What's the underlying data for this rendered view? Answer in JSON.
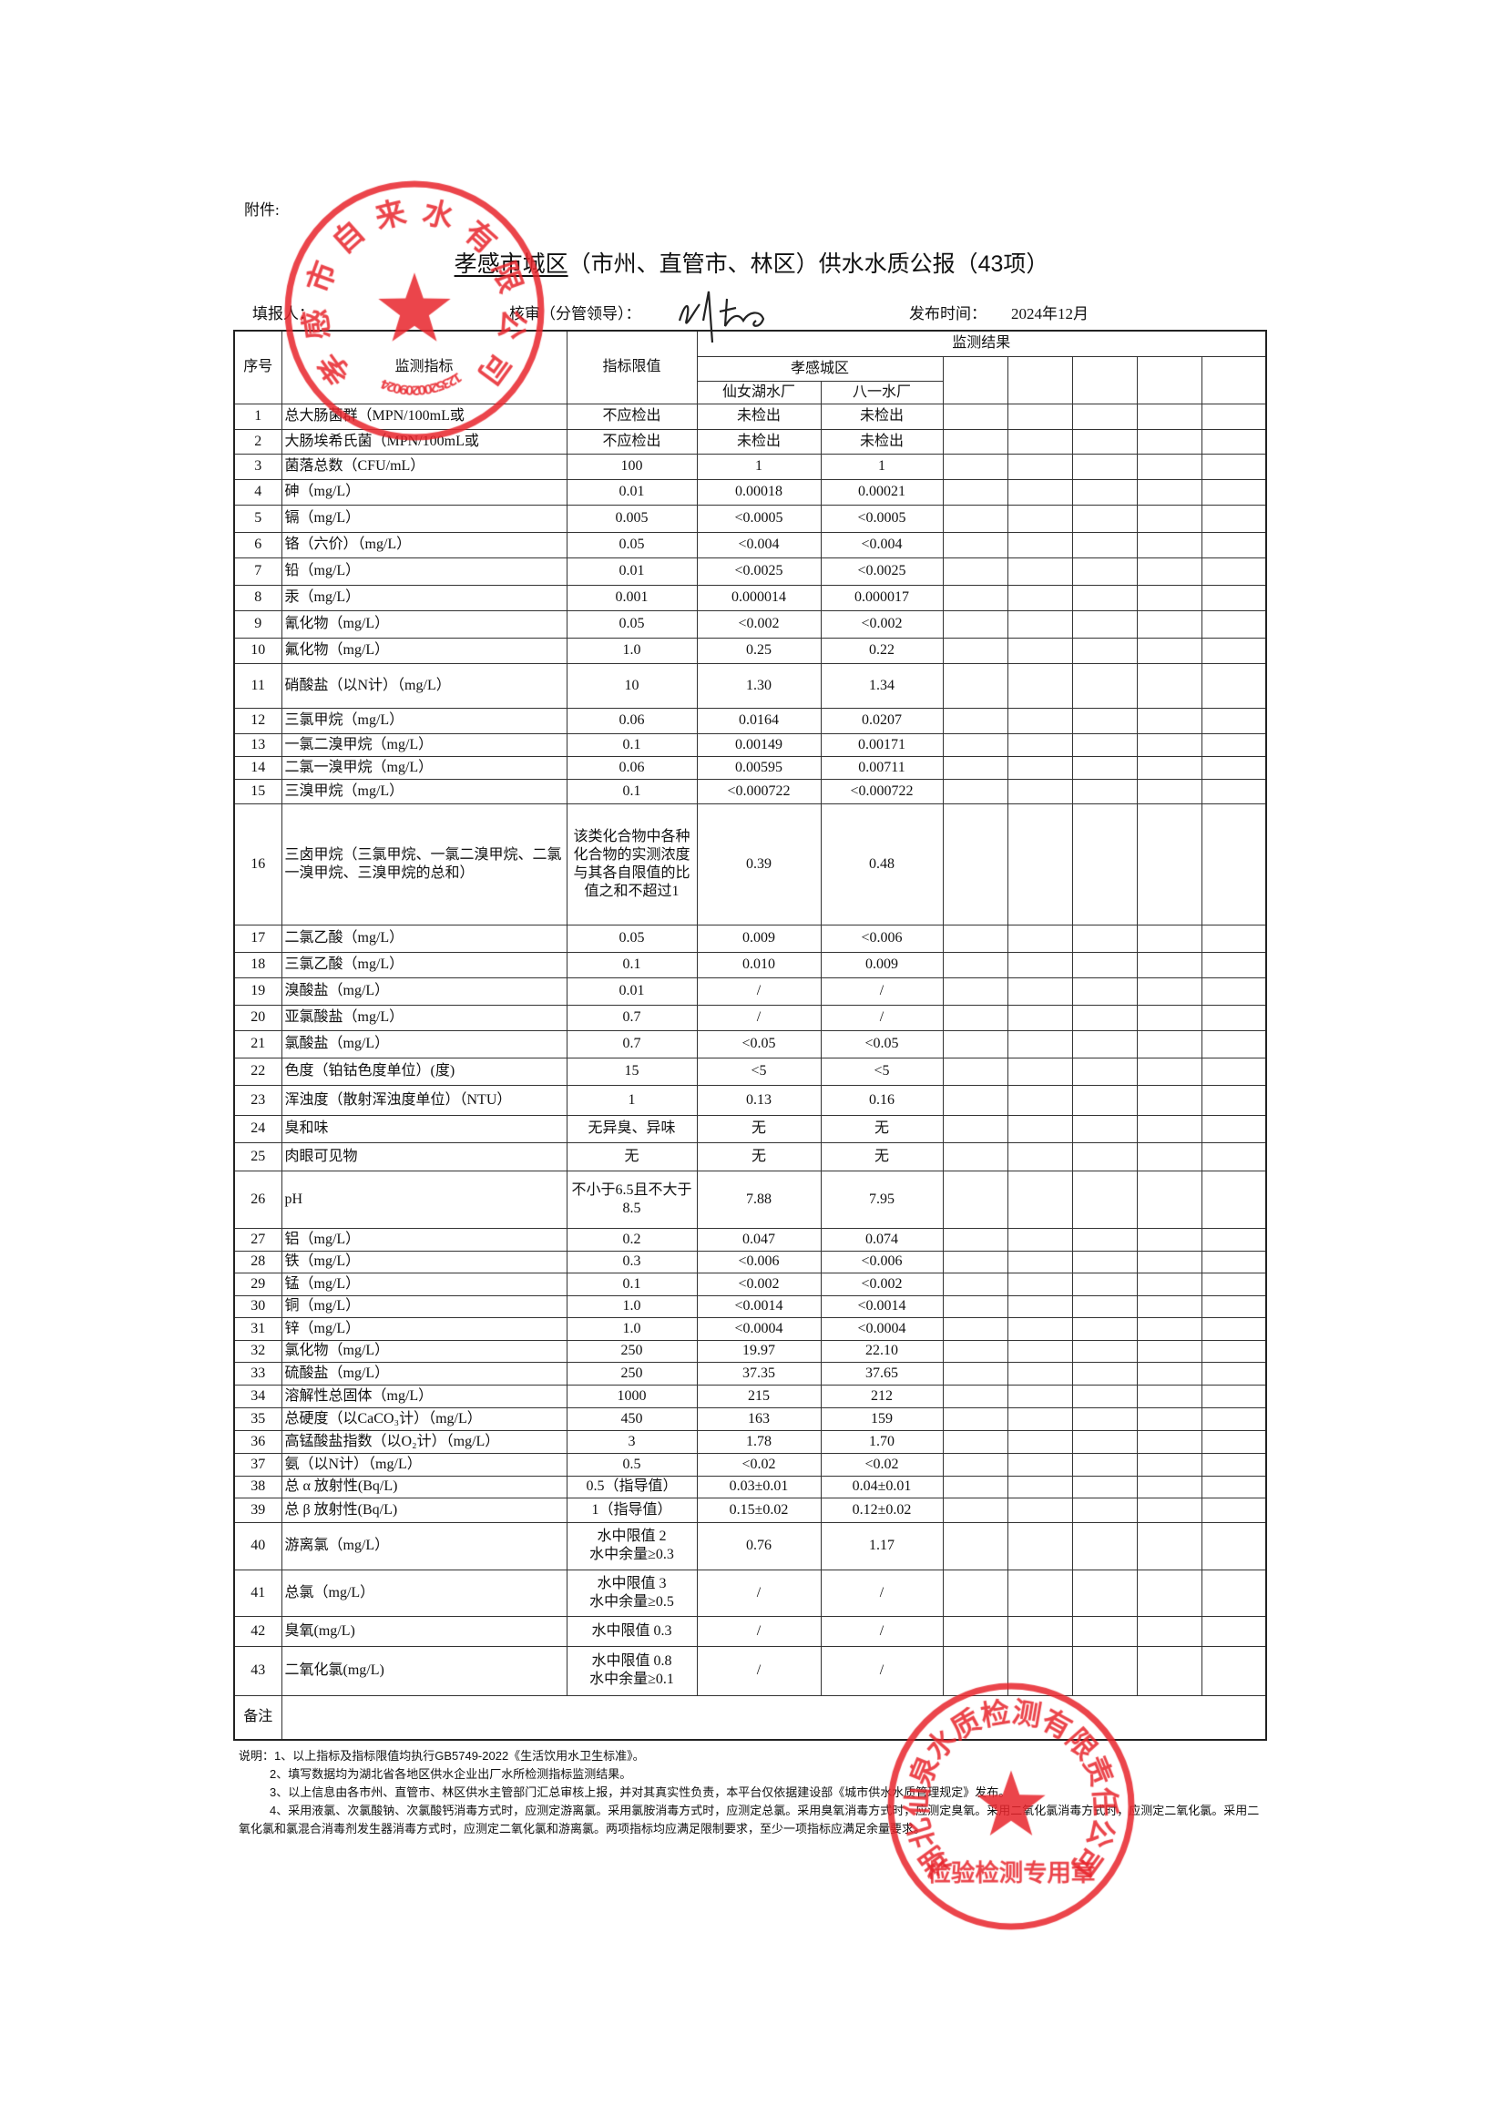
{
  "attachment_label": "附件:",
  "title": {
    "region": "孝感市城区",
    "rest": "（市州、直管市、林区）供水水质公报（43项）"
  },
  "meta": {
    "filler_label": "填报人：",
    "reviewer_label": "核审（分管领导）：",
    "publish_label": "发布时间：",
    "publish_date": "2024年12月"
  },
  "table": {
    "headers": {
      "seq": "序号",
      "indicator": "监测指标",
      "limit": "指标限值",
      "results": "监测结果",
      "district": "孝感城区",
      "plants": [
        "仙女湖水厂",
        "八一水厂"
      ]
    },
    "rows": [
      [
        "1",
        "总大肠菌群（MPN/100mL或",
        "不应检出",
        "未检出",
        "未检出"
      ],
      [
        "2",
        "大肠埃希氏菌（MPN/100mL或",
        "不应检出",
        "未检出",
        "未检出"
      ],
      [
        "3",
        "菌落总数（CFU/mL）",
        "100",
        "1",
        "1"
      ],
      [
        "4",
        "砷（mg/L）",
        "0.01",
        "0.00018",
        "0.00021"
      ],
      [
        "5",
        "镉（mg/L）",
        "0.005",
        "<0.0005",
        "<0.0005"
      ],
      [
        "6",
        "铬（六价）（mg/L）",
        "0.05",
        "<0.004",
        "<0.004"
      ],
      [
        "7",
        "铅（mg/L）",
        "0.01",
        "<0.0025",
        "<0.0025"
      ],
      [
        "8",
        "汞（mg/L）",
        "0.001",
        "0.000014",
        "0.000017"
      ],
      [
        "9",
        "氰化物（mg/L）",
        "0.05",
        "<0.002",
        "<0.002"
      ],
      [
        "10",
        "氟化物（mg/L）",
        "1.0",
        "0.25",
        "0.22"
      ],
      [
        "11",
        "硝酸盐（以N计）（mg/L）",
        "10",
        "1.30",
        "1.34"
      ],
      [
        "12",
        "三氯甲烷（mg/L）",
        "0.06",
        "0.0164",
        "0.0207"
      ],
      [
        "13",
        "一氯二溴甲烷（mg/L）",
        "0.1",
        "0.00149",
        "0.00171"
      ],
      [
        "14",
        "二氯一溴甲烷（mg/L）",
        "0.06",
        "0.00595",
        "0.00711"
      ],
      [
        "15",
        "三溴甲烷（mg/L）",
        "0.1",
        "<0.000722",
        "<0.000722"
      ],
      [
        "16",
        "三卤甲烷（三氯甲烷、一氯二溴甲烷、二氯一溴甲烷、三溴甲烷的总和）",
        "该类化合物中各种化合物的实测浓度与其各自限值的比值之和不超过1",
        "0.39",
        "0.48"
      ],
      [
        "17",
        "二氯乙酸（mg/L）",
        "0.05",
        "0.009",
        "<0.006"
      ],
      [
        "18",
        "三氯乙酸（mg/L）",
        "0.1",
        "0.010",
        "0.009"
      ],
      [
        "19",
        "溴酸盐（mg/L）",
        "0.01",
        "/",
        "/"
      ],
      [
        "20",
        "亚氯酸盐（mg/L）",
        "0.7",
        "/",
        "/"
      ],
      [
        "21",
        "氯酸盐（mg/L）",
        "0.7",
        "<0.05",
        "<0.05"
      ],
      [
        "22",
        "色度（铂钴色度单位）(度)",
        "15",
        "<5",
        "<5"
      ],
      [
        "23",
        "浑浊度（散射浑浊度单位）（NTU）",
        "1",
        "0.13",
        "0.16"
      ],
      [
        "24",
        "臭和味",
        "无异臭、异味",
        "无",
        "无"
      ],
      [
        "25",
        "肉眼可见物",
        "无",
        "无",
        "无"
      ],
      [
        "26",
        "pH",
        "不小于6.5且不大于8.5",
        "7.88",
        "7.95"
      ],
      [
        "27",
        "铝（mg/L）",
        "0.2",
        "0.047",
        "0.074"
      ],
      [
        "28",
        "铁（mg/L）",
        "0.3",
        "<0.006",
        "<0.006"
      ],
      [
        "29",
        "锰（mg/L）",
        "0.1",
        "<0.002",
        "<0.002"
      ],
      [
        "30",
        "铜（mg/L）",
        "1.0",
        "<0.0014",
        "<0.0014"
      ],
      [
        "31",
        "锌（mg/L）",
        "1.0",
        "<0.0004",
        "<0.0004"
      ],
      [
        "32",
        "氯化物（mg/L）",
        "250",
        "19.97",
        "22.10"
      ],
      [
        "33",
        "硫酸盐（mg/L）",
        "250",
        "37.35",
        "37.65"
      ],
      [
        "34",
        "溶解性总固体（mg/L）",
        "1000",
        "215",
        "212"
      ],
      [
        "35",
        "总硬度（以CaCO₃计）（mg/L）",
        "450",
        "163",
        "159"
      ],
      [
        "36",
        "高锰酸盐指数（以O₂计）（mg/L）",
        "3",
        "1.78",
        "1.70"
      ],
      [
        "37",
        "氨（以N计）（mg/L）",
        "0.5",
        "<0.02",
        "<0.02"
      ],
      [
        "38",
        "总 α 放射性(Bq/L)",
        "0.5（指导值）",
        "0.03±0.01",
        "0.04±0.01"
      ],
      [
        "39",
        "总 β 放射性(Bq/L)",
        "1（指导值）",
        "0.15±0.02",
        "0.12±0.02"
      ],
      [
        "40",
        "游离氯（mg/L）",
        "水中限值 2\n水中余量≥0.3",
        "0.76",
        "1.17"
      ],
      [
        "41",
        "总氯（mg/L）",
        "水中限值 3\n水中余量≥0.5",
        "/",
        "/"
      ],
      [
        "42",
        "臭氧(mg/L)",
        "水中限值 0.3",
        "/",
        "/"
      ],
      [
        "43",
        "二氧化氯(mg/L)",
        "水中限值 0.8\n水中余量≥0.1",
        "/",
        "/"
      ]
    ],
    "remarks_label": "备注"
  },
  "notes": [
    "说明：1、以上指标及指标限值均执行GB5749-2022《生活饮用水卫生标准》。",
    "2、填写数据均为湖北省各地区供水企业出厂水所检测指标监测结果。",
    "3、以上信息由各市州、直管市、林区供水主管部门汇总审核上报，并对其真实性负责，本平台仅依据建设部《城市供水水质管理规定》发布。",
    "4、采用液氯、次氯酸钠、次氯酸钙消毒方式时，应测定游离氯。采用氯胺消毒方式时，应测定总氯。采用臭氧消毒方式时，应测定臭氧。采用二氧化氯消毒方式时，应测定二氧化氯。采用二氧化氯和氯混合消毒剂发生器消毒方式时，应测定二氧化氯和游离氯。两项指标均应满足限制要求，至少一项指标应满足余量要求。"
  ],
  "stamps": {
    "left": {
      "text": "孝感市自来水有限公司",
      "code": "4209020025321",
      "color": "#e8242c"
    },
    "bottom": {
      "text": "湖北仙泉水质检测有限责任公司",
      "subtext": "检验检测专用章",
      "color": "#e8242c"
    }
  }
}
